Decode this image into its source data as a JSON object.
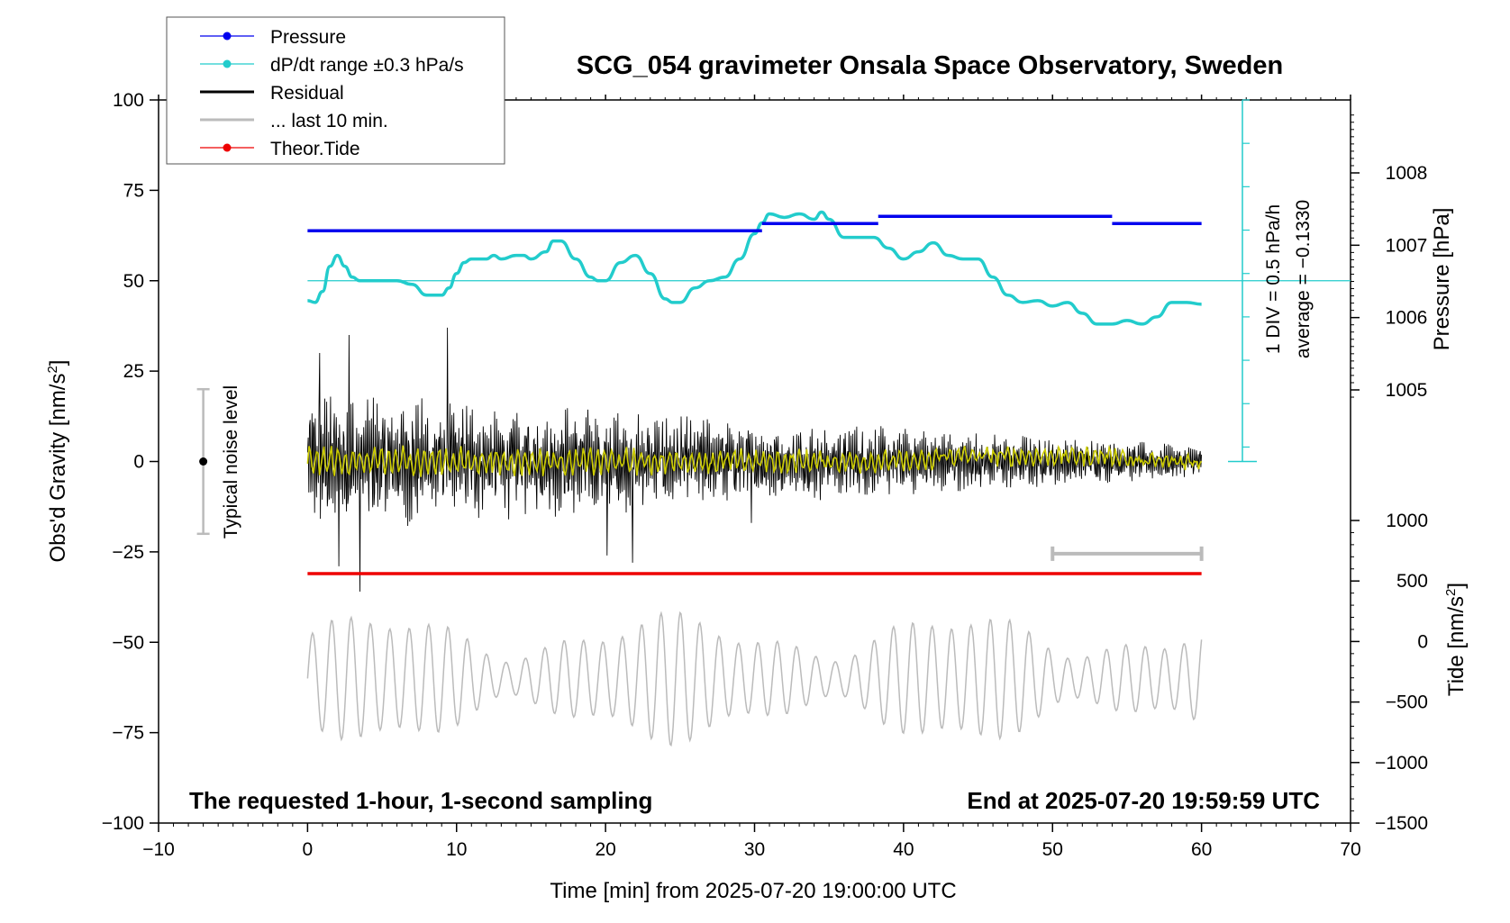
{
  "chart_data": {
    "type": "line",
    "title": "SCG_054 gravimeter Onsala Space Observatory, Sweden",
    "xlabel": "Time [min] from 2025-07-20 19:00:00 UTC",
    "ylabel_left_main": "Obs'd Gravity [nm/s",
    "ylabel_left_sup": "2",
    "ylabel_left_end": "]",
    "ylabel_right_pressure": "Pressure [hPa]",
    "ylabel_right_tide_main": "Tide [nm/s",
    "ylabel_right_tide_sup": "2",
    "ylabel_right_tide_end": "]",
    "xlim": [
      -10,
      70
    ],
    "ylim": [
      -100,
      100
    ],
    "x_ticks": [
      "−10",
      "0",
      "10",
      "20",
      "30",
      "40",
      "50",
      "60",
      "70"
    ],
    "y_ticks": [
      "100",
      "75",
      "50",
      "25",
      "0",
      "−25",
      "−50",
      "−75",
      "−100"
    ],
    "pressure_ticks": [
      "1008",
      "1007",
      "1006",
      "1005"
    ],
    "pressure_tick_values": [
      1008,
      1007,
      1006,
      1005
    ],
    "tide_ticks": [
      "1000",
      "500",
      "0",
      "−500",
      "−1000",
      "−1500"
    ],
    "tide_tick_values": [
      1000,
      500,
      0,
      -500,
      -1000,
      -1500
    ],
    "legend": [
      {
        "label": "Pressure",
        "color": "#0000ee",
        "marker": true
      },
      {
        "label": "dP/dt range ±0.3 hPa/s",
        "color": "#22cccc",
        "marker": true
      },
      {
        "label": "Residual",
        "color": "#000000",
        "marker": false
      },
      {
        "label": "... last 10 min.",
        "color": "#bbbbbb",
        "marker": false
      },
      {
        "label": "Theor.Tide",
        "color": "#ee0000",
        "marker": true
      }
    ],
    "footer_left": "The requested 1-hour, 1-second sampling",
    "footer_right": "End at 2025-07-20 19:59:59 UTC",
    "noise_label": "Typical noise level",
    "noise_level": {
      "x": -7,
      "center": 0,
      "range": [
        -20,
        20
      ]
    },
    "scale_note": "1 DIV = 0.5 hPa/h",
    "average_note": "average = −0.1330",
    "pressure_series": [
      {
        "x_start": 0,
        "x_end": 30.5,
        "value": 1007.2
      },
      {
        "x_start": 30.5,
        "x_end": 38.3,
        "value": 1007.3
      },
      {
        "x_start": 38.3,
        "x_end": 54,
        "value": 1007.4
      },
      {
        "x_start": 54,
        "x_end": 60,
        "value": 1007.3
      }
    ],
    "dpdt_series": {
      "x": [
        0,
        0.5,
        1.0,
        1.5,
        2.0,
        2.5,
        3.0,
        3.5,
        4.0,
        5.0,
        6.0,
        7.0,
        8.0,
        9.0,
        9.5,
        10.0,
        10.5,
        11.0,
        12.0,
        12.5,
        13.0,
        14.0,
        14.5,
        15.0,
        16.0,
        16.5,
        17.0,
        18.0,
        19.0,
        19.5,
        20.0,
        21.0,
        22.0,
        23.0,
        24.0,
        24.5,
        25.0,
        26.0,
        27.0,
        28.0,
        29.0,
        30.0,
        30.5,
        31.0,
        32.0,
        33.0,
        34.0,
        34.5,
        35.0,
        36.0,
        37.0,
        38.0,
        39.0,
        40.0,
        41.0,
        42.0,
        43.0,
        44.0,
        45.0,
        46.0,
        47.0,
        48.0,
        49.0,
        50.0,
        51.0,
        52.0,
        53.0,
        54.0,
        55.0,
        56.0,
        57.0,
        58.0,
        59.0,
        60.0
      ],
      "y": [
        44.5,
        44,
        47,
        54,
        57,
        54,
        51,
        50,
        50,
        50,
        50,
        49,
        46,
        46,
        48,
        52,
        55,
        56,
        56,
        57,
        56,
        57,
        57,
        56,
        58,
        61,
        61,
        56,
        51,
        50,
        50,
        55,
        57,
        52,
        45,
        44,
        44,
        48,
        50,
        51,
        56,
        63,
        66,
        68.5,
        67.5,
        68.5,
        67,
        69,
        67,
        62,
        62,
        62,
        59,
        56,
        58,
        60.5,
        57,
        56,
        56,
        51,
        46,
        44,
        44.5,
        43,
        44,
        41,
        38,
        38,
        39,
        38,
        40,
        44,
        44,
        43.5
      ]
    },
    "dpdt_reference": 50,
    "theor_tide": {
      "x": [
        0,
        60
      ],
      "y": [
        -31,
        -31
      ]
    },
    "last10min_bar": {
      "x": [
        50,
        60
      ],
      "y": -25.5
    },
    "residual": {
      "amplitude_start": 18,
      "amplitude_end": 4,
      "spikes_min": [
        0.8,
        2.1,
        2.8,
        3.5,
        9.4,
        20.1,
        21.8,
        29.8
      ],
      "spike_values": [
        30,
        -29,
        35,
        -36,
        37,
        -26,
        -28,
        -17
      ]
    },
    "residual_smoothed": {
      "color": "#cccc00"
    },
    "residual_last10": {
      "amplitude": 18,
      "offset": -60,
      "period_min": 1.3
    }
  }
}
